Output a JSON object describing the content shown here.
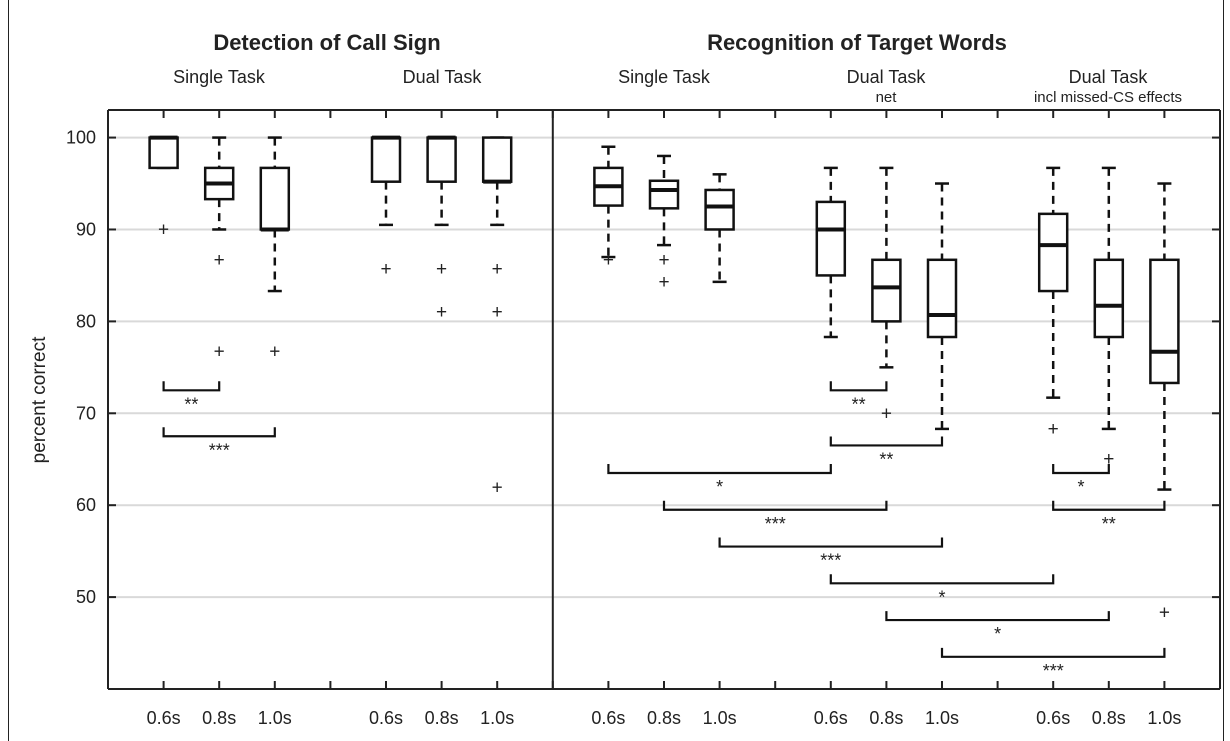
{
  "titles": {
    "left": "Detection of Call Sign",
    "right": "Recognition of Target Words"
  },
  "subtitles": [
    {
      "main": "Single Task",
      "sub": ""
    },
    {
      "main": "Dual Task",
      "sub": ""
    },
    {
      "main": "Single Task",
      "sub": ""
    },
    {
      "main": "Dual Task",
      "sub": "net"
    },
    {
      "main": "Dual Task",
      "sub": "incl missed-CS effects"
    }
  ],
  "colors": {
    "box": "#111111",
    "grid": "#d9d9d9",
    "axis": "#222222",
    "text": "#222222"
  },
  "chart_data": {
    "type": "box",
    "ylabel": "percent correct",
    "ylim": [
      40,
      103
    ],
    "yticks": [
      50,
      60,
      70,
      80,
      90,
      100
    ],
    "grid": "horizontal",
    "categories": [
      "0.6s",
      "0.8s",
      "1.0s",
      "0.6s",
      "0.8s",
      "1.0s",
      "0.6s",
      "0.8s",
      "1.0s",
      "0.6s",
      "0.8s",
      "1.0s",
      "0.6s",
      "0.8s",
      "1.0s"
    ],
    "groups": [
      "Detection / Single Task",
      "Detection / Dual Task",
      "Recognition / Single Task",
      "Recognition / Dual Task net",
      "Recognition / Dual Task incl missed-CS effects"
    ],
    "boxes": [
      {
        "pos": 1,
        "min": 96.7,
        "q1": 96.7,
        "median": 100,
        "q3": 100,
        "max": 100,
        "outliers": [
          90
        ]
      },
      {
        "pos": 2,
        "min": 90,
        "q1": 93.3,
        "median": 95,
        "q3": 96.7,
        "max": 100,
        "outliers": [
          86.7,
          76.7
        ]
      },
      {
        "pos": 3,
        "min": 83.3,
        "q1": 90,
        "median": 90,
        "q3": 96.7,
        "max": 100,
        "outliers": [
          76.7
        ]
      },
      {
        "pos": 5,
        "min": 90.5,
        "q1": 95.2,
        "median": 100,
        "q3": 100,
        "max": 100,
        "outliers": [
          85.7
        ]
      },
      {
        "pos": 6,
        "min": 90.5,
        "q1": 95.2,
        "median": 100,
        "q3": 100,
        "max": 100,
        "outliers": [
          85.7,
          81
        ]
      },
      {
        "pos": 7,
        "min": 90.5,
        "q1": 95.2,
        "median": 95.2,
        "q3": 100,
        "max": 100,
        "outliers": [
          85.7,
          81,
          61.9
        ]
      },
      {
        "pos": 9,
        "min": 87,
        "q1": 92.6,
        "median": 94.7,
        "q3": 96.7,
        "max": 99,
        "outliers": [
          86.7
        ]
      },
      {
        "pos": 10,
        "min": 88.3,
        "q1": 92.3,
        "median": 94.3,
        "q3": 95.3,
        "max": 98,
        "outliers": [
          86.7,
          84.3
        ]
      },
      {
        "pos": 11,
        "min": 84.3,
        "q1": 90,
        "median": 92.5,
        "q3": 94.3,
        "max": 96,
        "outliers": []
      },
      {
        "pos": 13,
        "min": 78.3,
        "q1": 85,
        "median": 90,
        "q3": 93,
        "max": 96.7,
        "outliers": []
      },
      {
        "pos": 14,
        "min": 75,
        "q1": 80,
        "median": 83.7,
        "q3": 86.7,
        "max": 96.7,
        "outliers": [
          70
        ]
      },
      {
        "pos": 15,
        "min": 68.3,
        "q1": 78.3,
        "median": 80.7,
        "q3": 86.7,
        "max": 95,
        "outliers": []
      },
      {
        "pos": 17,
        "min": 71.7,
        "q1": 83.3,
        "median": 88.3,
        "q3": 91.7,
        "max": 96.7,
        "outliers": [
          68.3
        ]
      },
      {
        "pos": 18,
        "min": 68.3,
        "q1": 78.3,
        "median": 81.7,
        "q3": 86.7,
        "max": 96.7,
        "outliers": [
          65
        ]
      },
      {
        "pos": 19,
        "min": 61.7,
        "q1": 73.3,
        "median": 76.7,
        "q3": 86.7,
        "max": 95,
        "outliers": [
          48.3
        ]
      }
    ],
    "significance": [
      {
        "from": 1,
        "to": 2,
        "y": 72.5,
        "label": "**"
      },
      {
        "from": 1,
        "to": 3,
        "y": 67.5,
        "label": "***"
      },
      {
        "from": 13,
        "to": 14,
        "y": 72.5,
        "label": "**"
      },
      {
        "from": 13,
        "to": 15,
        "y": 66.5,
        "label": "**"
      },
      {
        "from": 9,
        "to": 13,
        "y": 63.5,
        "label": "*"
      },
      {
        "from": 10,
        "to": 14,
        "y": 59.5,
        "label": "***"
      },
      {
        "from": 11,
        "to": 15,
        "y": 55.5,
        "label": "***"
      },
      {
        "from": 13,
        "to": 17,
        "y": 51.5,
        "label": "*"
      },
      {
        "from": 14,
        "to": 18,
        "y": 47.5,
        "label": "*"
      },
      {
        "from": 15,
        "to": 19,
        "y": 43.5,
        "label": "***"
      },
      {
        "from": 17,
        "to": 18,
        "y": 63.5,
        "label": "*"
      },
      {
        "from": 17,
        "to": 19,
        "y": 59.5,
        "label": "**"
      }
    ]
  }
}
